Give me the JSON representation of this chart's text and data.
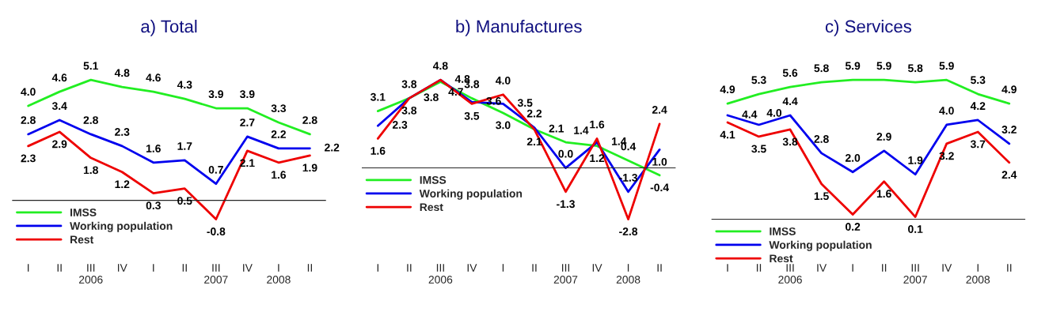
{
  "chart_data": [
    {
      "type": "line",
      "title": "a) Total",
      "categories": [
        "I",
        "II",
        "III\n2006",
        "IV",
        "I",
        "II",
        "III\n2007",
        "IV",
        "I\n2008",
        "II"
      ],
      "legend": "bottom left",
      "marker": "none",
      "line_style": "solid",
      "grid": false,
      "series": [
        {
          "name": "IMSS",
          "color": "#22ee22",
          "values": [
            4.0,
            4.6,
            5.1,
            4.8,
            4.6,
            4.3,
            3.9,
            3.9,
            3.3,
            2.8
          ],
          "value_labels": [
            "4.0",
            "4.6",
            "5.1",
            "4.8",
            "4.6",
            "4.3",
            "3.9",
            "3.9",
            "3.3",
            "2.8"
          ]
        },
        {
          "name": "Working population",
          "color": "#0000ee",
          "values": [
            2.8,
            3.4,
            2.8,
            2.3,
            1.6,
            1.7,
            0.7,
            2.7,
            2.2,
            2.2
          ],
          "value_labels": [
            "2.8",
            "3.4",
            "2.8",
            "2.3",
            "1.6",
            "1.7",
            "0.7",
            "2.7",
            "2.2",
            "2.2"
          ]
        },
        {
          "name": "Rest",
          "color": "#ee0000",
          "values": [
            2.3,
            2.9,
            1.8,
            1.2,
            0.3,
            0.5,
            -0.8,
            2.1,
            1.6,
            1.9
          ],
          "value_labels": [
            "2.3",
            "2.9",
            "1.8",
            "1.2",
            "0.3",
            "0.5",
            "-0.8",
            "2.1",
            "1.6",
            "1.9"
          ]
        }
      ]
    },
    {
      "type": "line",
      "title": "b) Manufactures",
      "categories": [
        "I",
        "II",
        "III\n2006",
        "IV",
        "I",
        "II",
        "III\n2007",
        "IV",
        "I\n2008",
        "II"
      ],
      "legend": "bottom left",
      "marker": "none",
      "line_style": "solid",
      "grid": false,
      "series": [
        {
          "name": "IMSS",
          "color": "#22ee22",
          "values": [
            3.1,
            3.8,
            4.7,
            3.8,
            3.0,
            2.1,
            1.4,
            1.2,
            0.4,
            -0.4
          ],
          "value_labels": [
            "3.1",
            "3.8",
            "4.7",
            "3.8",
            "3.0",
            "2.1",
            "1.4",
            "1.2",
            "0.4",
            "-0.4"
          ]
        },
        {
          "name": "Working population",
          "color": "#0000ee",
          "values": [
            2.3,
            3.8,
            4.8,
            3.6,
            3.5,
            2.2,
            0.0,
            1.4,
            -1.3,
            1.0
          ],
          "value_labels": [
            "2.3",
            "3.8",
            "4.8",
            "3.6",
            "3.5",
            "2.2",
            "0.0",
            "1.4",
            "-1.3",
            "1.0"
          ]
        },
        {
          "name": "Rest",
          "color": "#ee0000",
          "values": [
            1.6,
            3.8,
            4.8,
            3.5,
            4.0,
            2.1,
            -1.3,
            1.6,
            -2.8,
            2.4
          ],
          "value_labels": [
            "1.6",
            "3.8",
            "4.8",
            "3.5",
            "4.0",
            "2.1",
            "-1.3",
            "1.6",
            "-2.8",
            "2.4"
          ]
        }
      ]
    },
    {
      "type": "line",
      "title": "c) Services",
      "categories": [
        "I",
        "II",
        "III\n2006",
        "IV",
        "I",
        "II",
        "III\n2007",
        "IV",
        "I\n2008",
        "II"
      ],
      "legend": "bottom left",
      "marker": "none",
      "line_style": "solid",
      "grid": false,
      "series": [
        {
          "name": "IMSS",
          "color": "#22ee22",
          "values": [
            4.9,
            5.3,
            5.6,
            5.8,
            5.9,
            5.9,
            5.8,
            5.9,
            5.3,
            4.9
          ],
          "value_labels": [
            "4.9",
            "5.3",
            "5.6",
            "5.8",
            "5.9",
            "5.9",
            "5.8",
            "5.9",
            "5.3",
            "4.9"
          ]
        },
        {
          "name": "Working population",
          "color": "#0000ee",
          "values": [
            4.4,
            4.0,
            4.4,
            2.8,
            2.0,
            2.9,
            1.9,
            4.0,
            4.2,
            3.2
          ],
          "value_labels": [
            "4.4",
            "4.0",
            "4.4",
            "2.8",
            "2.0",
            "2.9",
            "1.9",
            "4.0",
            "4.2",
            "3.2"
          ]
        },
        {
          "name": "Rest",
          "color": "#ee0000",
          "values": [
            4.1,
            3.5,
            3.8,
            1.5,
            0.2,
            1.6,
            0.1,
            3.2,
            3.7,
            2.4
          ],
          "value_labels": [
            "4.1",
            "3.5",
            "3.8",
            "1.5",
            "0.2",
            "1.6",
            "0.1",
            "3.2",
            "3.7",
            "2.4"
          ]
        }
      ]
    }
  ]
}
